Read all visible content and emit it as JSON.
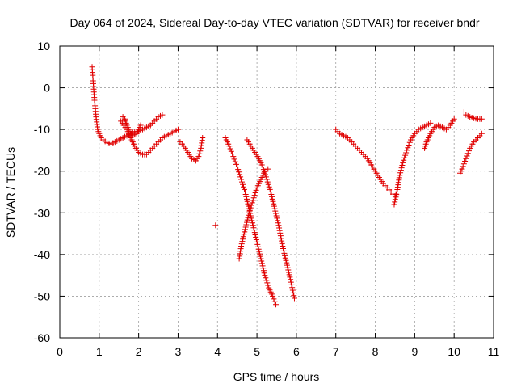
{
  "chart_data": {
    "type": "scatter",
    "title": "Day 064 of 2024, Sidereal Day-to-day VTEC variation (SDTVAR) for receiver bndr",
    "xlabel": "GPS time / hours",
    "ylabel": "SDTVAR / TECUs",
    "xlim": [
      0,
      11
    ],
    "ylim": [
      -60,
      10
    ],
    "xticks": [
      0,
      1,
      2,
      3,
      4,
      5,
      6,
      7,
      8,
      9,
      10,
      11
    ],
    "yticks": [
      10,
      0,
      -10,
      -20,
      -30,
      -40,
      -50,
      -60
    ],
    "grid": true,
    "marker": "+",
    "color": "#e00000",
    "series": [
      {
        "x": [
          0.82,
          0.85,
          0.88,
          0.92,
          0.96,
          1.0,
          1.05,
          1.1,
          1.2,
          1.3,
          1.4,
          1.5,
          1.6,
          1.7,
          1.8,
          1.9,
          2.0,
          2.1,
          2.2,
          2.3,
          2.4,
          2.5,
          2.6
        ],
        "y": [
          5,
          1,
          -3,
          -7,
          -10,
          -11,
          -12,
          -12.5,
          -13.2,
          -13.5,
          -13,
          -12.5,
          -12,
          -11.5,
          -11,
          -10.5,
          -10.5,
          -10,
          -9.5,
          -9,
          -8,
          -7,
          -6.5
        ]
      },
      {
        "x": [
          1.55,
          1.62,
          1.7,
          1.8,
          1.9,
          2.0,
          2.1,
          2.2,
          2.3,
          2.4,
          2.5,
          2.6,
          2.7,
          2.8,
          2.9,
          3.0
        ],
        "y": [
          -8,
          -9,
          -10,
          -12,
          -14,
          -15.5,
          -16,
          -16,
          -15,
          -14,
          -13,
          -12,
          -11.5,
          -11,
          -10.5,
          -10
        ]
      },
      {
        "x": [
          1.6,
          1.65,
          1.7,
          1.78,
          1.85,
          1.95,
          2.0,
          2.05
        ],
        "y": [
          -7,
          -7.5,
          -9,
          -10.5,
          -11.5,
          -11,
          -10,
          -9
        ]
      },
      {
        "x": [
          3.05,
          3.15,
          3.25,
          3.35,
          3.45,
          3.52,
          3.58,
          3.62
        ],
        "y": [
          -13,
          -14,
          -15.5,
          -17,
          -17.5,
          -16.5,
          -14.5,
          -12
        ]
      },
      {
        "x": [
          3.95
        ],
        "y": [
          -33
        ]
      },
      {
        "x": [
          4.2,
          4.3,
          4.4,
          4.5,
          4.6,
          4.7,
          4.8,
          4.9,
          5.0,
          5.1,
          5.2,
          5.3,
          5.4,
          5.48
        ],
        "y": [
          -12,
          -14,
          -16.5,
          -19,
          -22,
          -25,
          -29,
          -33,
          -37,
          -41,
          -45,
          -48,
          -50,
          -52
        ]
      },
      {
        "x": [
          4.55,
          4.6,
          4.7,
          4.8,
          4.9,
          5.0,
          5.1,
          5.2,
          5.28
        ],
        "y": [
          -41,
          -38,
          -34,
          -30,
          -27,
          -24,
          -22,
          -20,
          -19.5
        ]
      },
      {
        "x": [
          4.75,
          4.85,
          4.95,
          5.05,
          5.15,
          5.25,
          5.35,
          5.45,
          5.55,
          5.65,
          5.75,
          5.85,
          5.95
        ],
        "y": [
          -12.5,
          -14,
          -15.5,
          -17,
          -19,
          -22,
          -25,
          -29,
          -33,
          -38,
          -42,
          -46,
          -50.5
        ]
      },
      {
        "x": [
          7.0,
          7.1,
          7.2,
          7.3,
          7.4,
          7.5,
          7.6,
          7.7,
          7.8,
          7.9,
          8.0,
          8.1,
          8.2,
          8.3,
          8.4,
          8.5,
          8.55
        ],
        "y": [
          -10,
          -11,
          -11.5,
          -12,
          -13,
          -14,
          -15,
          -16,
          -17,
          -18.5,
          -20,
          -21.5,
          -23,
          -24,
          -25,
          -26,
          -25
        ]
      },
      {
        "x": [
          8.48,
          8.55,
          8.62,
          8.7,
          8.8,
          8.9,
          9.0,
          9.1,
          9.2,
          9.3,
          9.4
        ],
        "y": [
          -28,
          -25,
          -21,
          -18,
          -15,
          -12.5,
          -11,
          -10,
          -9.5,
          -9,
          -8.5
        ]
      },
      {
        "x": [
          9.25,
          9.3,
          9.4,
          9.5,
          9.6,
          9.7,
          9.8,
          9.9,
          10.0
        ],
        "y": [
          -14.5,
          -13,
          -11,
          -9.5,
          -9,
          -9.5,
          -10,
          -9,
          -7.5
        ]
      },
      {
        "x": [
          10.15,
          10.2,
          10.3,
          10.4,
          10.5,
          10.6,
          10.7
        ],
        "y": [
          -20.5,
          -19.5,
          -17,
          -14.5,
          -13,
          -12,
          -11
        ]
      },
      {
        "x": [
          10.25,
          10.3,
          10.4,
          10.5,
          10.6,
          10.7
        ],
        "y": [
          -5.8,
          -6.5,
          -7,
          -7.3,
          -7.5,
          -7.5
        ]
      }
    ]
  }
}
